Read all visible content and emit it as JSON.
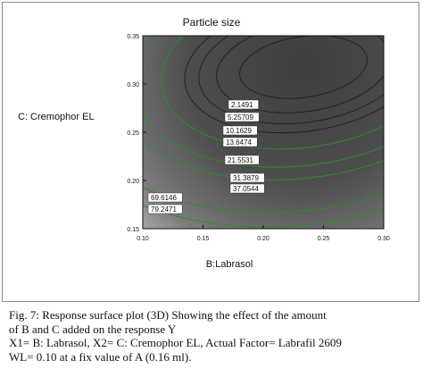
{
  "chart_data": {
    "type": "contour",
    "title": "Particle size",
    "xlabel": "B:Labrasol",
    "ylabel": "C: Cremophor EL",
    "xlim": [
      0.1,
      0.3
    ],
    "ylim": [
      0.15,
      0.35
    ],
    "x_ticks": [
      "0.10",
      "0.15",
      "0.20",
      "0.25",
      "0.30"
    ],
    "y_ticks": [
      "0.15",
      "0.20",
      "0.25",
      "0.30",
      "0.35"
    ],
    "contour_labels": [
      "2.1491",
      "5.25709",
      "10.1629",
      "13.6474",
      "21.5531",
      "31.3879",
      "37.0544",
      "69.6146",
      "79.2471"
    ],
    "colors": {
      "low": "#4a4a4a",
      "high": "#c9c9c9",
      "contour": "#2e8b2e"
    }
  },
  "caption": {
    "line1": "Fig. 7: Response surface plot (3D) Showing the effect of the amount",
    "line2": "of B and C added on the response Y",
    "line3": "X1= B: Labrasol, X2= C: Cremophor EL, Actual Factor= Labrafil 2609",
    "line4": "WL= 0.10 at a fix value of A (0.16 ml)."
  }
}
